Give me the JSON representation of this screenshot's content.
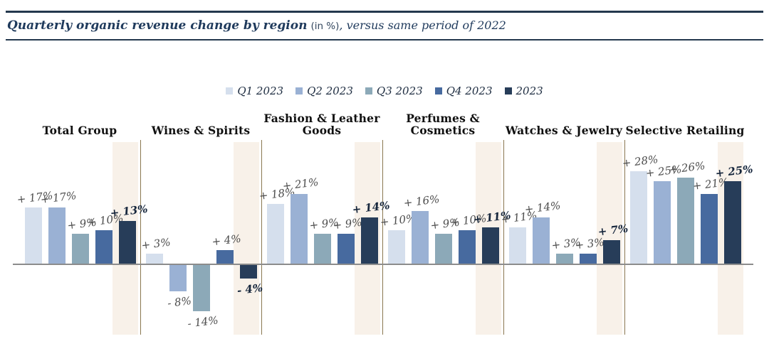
{
  "page": {
    "title_main": "Quarterly organic revenue change by region",
    "title_unit": "(in %)",
    "title_rest": ", versus same period of 2022"
  },
  "chart_data": {
    "type": "bar",
    "title": "Quarterly organic revenue change by region (in %), versus same period of 2022",
    "value_unit": "%",
    "comparison_note": "versus same period of 2022",
    "legend_position": "top",
    "grid": false,
    "ylim": [
      -20,
      35
    ],
    "categories": [
      "Total Group",
      "Wines & Spirits",
      "Fashion & Leather Goods",
      "Perfumes & Cosmetics",
      "Watches & Jewelry",
      "Selective Retailing"
    ],
    "series": [
      {
        "name": "Q1 2023",
        "color": "#d5dfed",
        "values": [
          17,
          3,
          18,
          10,
          11,
          28
        ],
        "labels": [
          "+ 17%",
          "+ 3%",
          "+ 18%",
          "+ 10%",
          "+ 11%",
          "+ 28%"
        ]
      },
      {
        "name": "Q2 2023",
        "color": "#9ab1d4",
        "values": [
          17,
          -8,
          21,
          16,
          14,
          25
        ],
        "labels": [
          "+ 17%",
          "- 8%",
          "+ 21%",
          "+ 16%",
          "+ 14%",
          "+ 25%"
        ]
      },
      {
        "name": "Q3 2023",
        "color": "#8ca9b8",
        "values": [
          9,
          -14,
          9,
          9,
          3,
          26
        ],
        "labels": [
          "+ 9%",
          "- 14%",
          "+ 9%",
          "+ 9%",
          "+ 3%",
          "+ 26%"
        ]
      },
      {
        "name": "Q4 2023",
        "color": "#476a9f",
        "values": [
          10,
          4,
          9,
          10,
          3,
          21
        ],
        "labels": [
          "+ 10%",
          "+ 4%",
          "+ 9%",
          "+ 10%",
          "+ 3%",
          "+ 21%"
        ]
      },
      {
        "name": "2023",
        "color": "#273d59",
        "values": [
          13,
          -4,
          14,
          11,
          7,
          25
        ],
        "labels": [
          "+ 13%",
          "- 4%",
          "+ 14%",
          "+ 11%",
          "+ 7%",
          "+ 25%"
        ]
      }
    ],
    "highlight_series": "2023",
    "colors": {
      "highlight_band": "#f8f1e9",
      "separator": "#8a7750",
      "axis": "#8c8c8c",
      "label": "#4d4d4d",
      "highlight_label": "#16263c"
    }
  }
}
